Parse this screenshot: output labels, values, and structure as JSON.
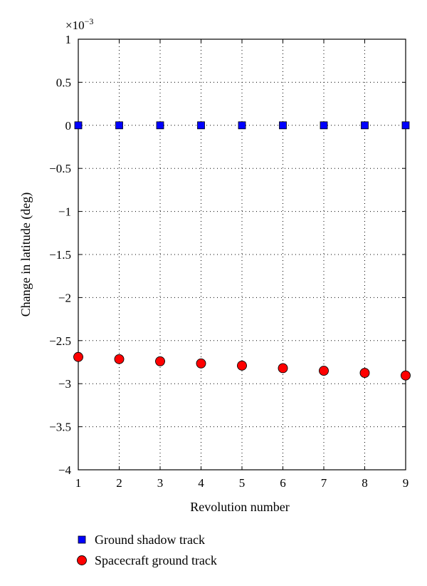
{
  "chart_data": {
    "type": "scatter",
    "xlabel": "Revolution number",
    "ylabel": "Change in latitude (deg)",
    "y_scale_label_base": "×10",
    "y_scale_label_exp": "−3",
    "xlim": [
      1,
      9
    ],
    "ylim": [
      -4,
      1
    ],
    "x_ticks": [
      1,
      2,
      3,
      4,
      5,
      6,
      7,
      8,
      9
    ],
    "x_tick_labels": [
      "1",
      "2",
      "3",
      "4",
      "5",
      "6",
      "7",
      "8",
      "9"
    ],
    "y_ticks": [
      1,
      0.5,
      0,
      -0.5,
      -1,
      -1.5,
      -2,
      -2.5,
      -3,
      -3.5,
      -4
    ],
    "y_tick_labels": [
      "1",
      "0.5",
      "0",
      "−0.5",
      "−1",
      "−1.5",
      "−2",
      "−2.5",
      "−3",
      "−3.5",
      "−4"
    ],
    "grid": true,
    "legend_position": "below",
    "series": [
      {
        "name": "Ground shadow track",
        "marker": "square",
        "color": "#0000ff",
        "x": [
          1,
          2,
          3,
          4,
          5,
          6,
          7,
          8,
          9
        ],
        "y": [
          0,
          0,
          0,
          0,
          0,
          0,
          0,
          0,
          0
        ]
      },
      {
        "name": "Spacecraft ground track",
        "marker": "circle",
        "color": "#ff0000",
        "x": [
          1,
          2,
          3,
          4,
          5,
          6,
          7,
          8,
          9
        ],
        "y": [
          -2.69,
          -2.715,
          -2.74,
          -2.765,
          -2.79,
          -2.82,
          -2.85,
          -2.875,
          -2.905
        ]
      }
    ]
  }
}
